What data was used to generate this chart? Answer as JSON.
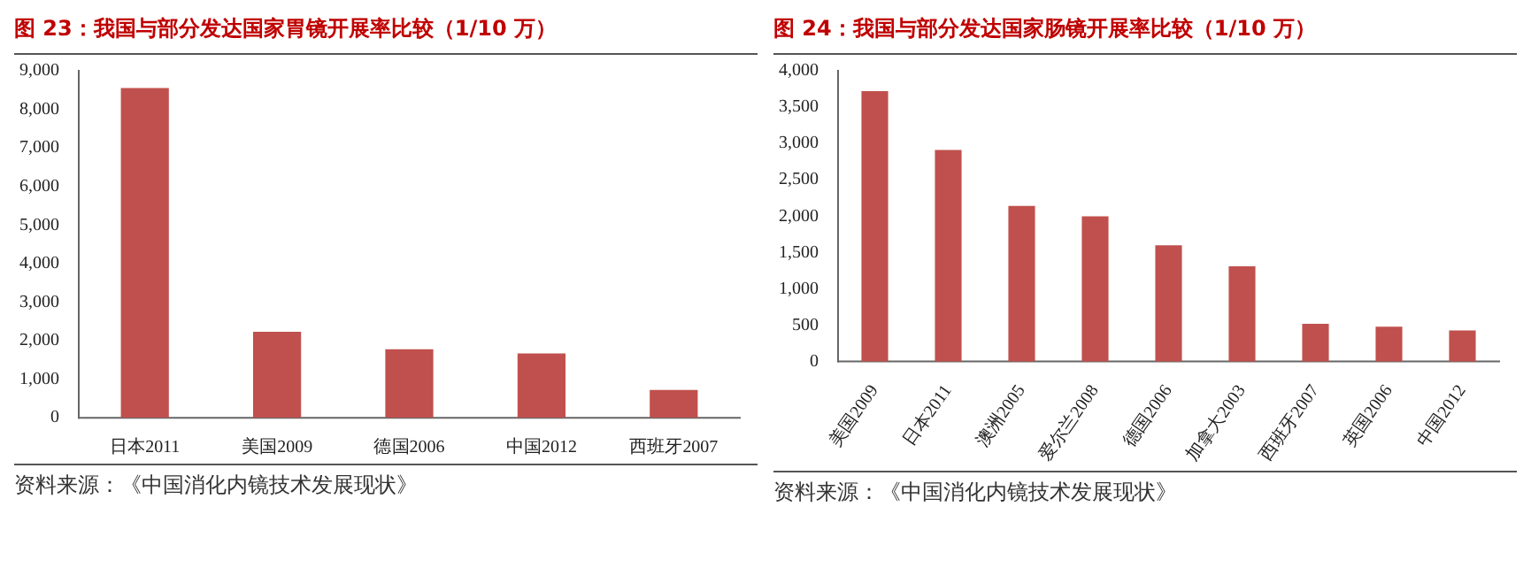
{
  "chart_data": [
    {
      "type": "bar",
      "title": "图 23：我国与部分发达国家胃镜开展率比较（1/10 万）",
      "categories": [
        "日本2011",
        "美国2009",
        "德国2006",
        "中国2012",
        "西班牙2007"
      ],
      "values": [
        8550,
        2230,
        1780,
        1670,
        720
      ],
      "color": "#c0504d",
      "ylim": [
        0,
        9000
      ],
      "yticks": [
        {
          "value": 0,
          "label": "0"
        },
        {
          "value": 1000,
          "label": "1,000"
        },
        {
          "value": 2000,
          "label": "2,000"
        },
        {
          "value": 3000,
          "label": "3,000"
        },
        {
          "value": 4000,
          "label": "4,000"
        },
        {
          "value": 5000,
          "label": "5,000"
        },
        {
          "value": 6000,
          "label": "6,000"
        },
        {
          "value": 7000,
          "label": "7,000"
        },
        {
          "value": 8000,
          "label": "8,000"
        },
        {
          "value": 9000,
          "label": "9,000"
        }
      ],
      "grid": false,
      "legend": false,
      "annotations": [
        "资料来源：《中国消化内镜技术发展现状》"
      ]
    },
    {
      "type": "bar",
      "title": "图 24：我国与部分发达国家肠镜开展率比较（1/10 万）",
      "categories": [
        "美国2009",
        "日本2011",
        "澳洲2005",
        "爱尔兰2008",
        "德国2006",
        "加拿大2003",
        "西班牙2007",
        "英国2006",
        "中国2012"
      ],
      "values": [
        3720,
        2910,
        2140,
        2000,
        1600,
        1310,
        520,
        480,
        430
      ],
      "color": "#c0504d",
      "ylim": [
        0,
        4000
      ],
      "yticks": [
        {
          "value": 0,
          "label": "0"
        },
        {
          "value": 500,
          "label": "500"
        },
        {
          "value": 1000,
          "label": "1,000"
        },
        {
          "value": 1500,
          "label": "1,500"
        },
        {
          "value": 2000,
          "label": "2,000"
        },
        {
          "value": 2500,
          "label": "2,500"
        },
        {
          "value": 3000,
          "label": "3,000"
        },
        {
          "value": 3500,
          "label": "3,500"
        },
        {
          "value": 4000,
          "label": "4,000"
        }
      ],
      "grid": false,
      "legend": false,
      "annotations": [
        "资料来源：《中国消化内镜技术发展现状》"
      ]
    }
  ]
}
